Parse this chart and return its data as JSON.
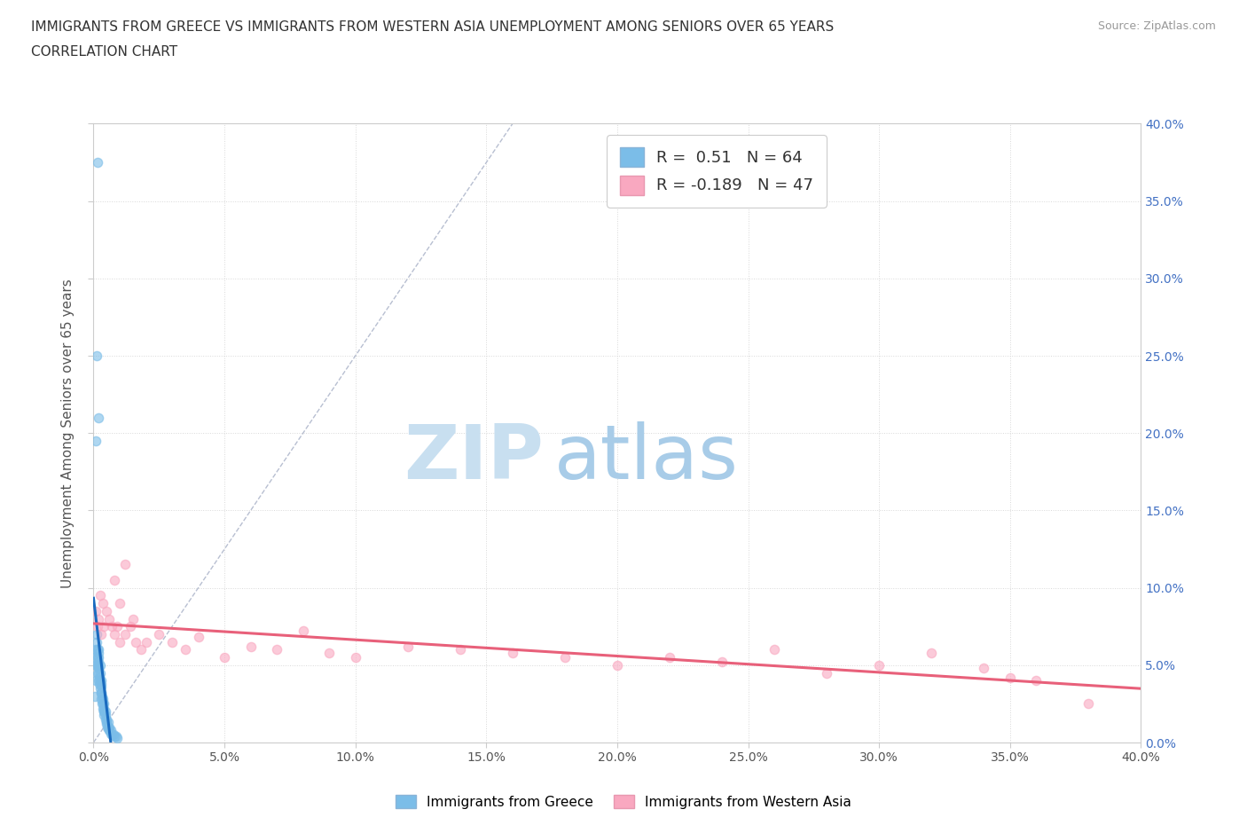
{
  "title_line1": "IMMIGRANTS FROM GREECE VS IMMIGRANTS FROM WESTERN ASIA UNEMPLOYMENT AMONG SENIORS OVER 65 YEARS",
  "title_line2": "CORRELATION CHART",
  "source_text": "Source: ZipAtlas.com",
  "ylabel": "Unemployment Among Seniors over 65 years",
  "xlim": [
    0.0,
    0.4
  ],
  "ylim": [
    0.0,
    0.4
  ],
  "xticks": [
    0.0,
    0.05,
    0.1,
    0.15,
    0.2,
    0.25,
    0.3,
    0.35,
    0.4
  ],
  "yticks": [
    0.0,
    0.05,
    0.1,
    0.15,
    0.2,
    0.25,
    0.3,
    0.35,
    0.4
  ],
  "R_greece": 0.51,
  "N_greece": 64,
  "R_western_asia": -0.189,
  "N_western_asia": 47,
  "color_greece": "#7bbde8",
  "color_western_asia": "#f9a8c0",
  "color_greece_line": "#1a6bbf",
  "color_western_asia_line": "#e8607a",
  "color_diag": "#b0b8cc",
  "watermark_zip": "ZIP",
  "watermark_atlas": "atlas",
  "watermark_color": "#c8dff0",
  "greece_x": [
    0.0005,
    0.0005,
    0.0008,
    0.001,
    0.001,
    0.0012,
    0.0012,
    0.0015,
    0.0015,
    0.0015,
    0.0015,
    0.0018,
    0.0018,
    0.0018,
    0.002,
    0.002,
    0.002,
    0.002,
    0.002,
    0.0022,
    0.0022,
    0.0025,
    0.0025,
    0.0025,
    0.0025,
    0.0028,
    0.0028,
    0.003,
    0.003,
    0.003,
    0.003,
    0.0032,
    0.0032,
    0.0035,
    0.0035,
    0.0035,
    0.0038,
    0.004,
    0.004,
    0.004,
    0.004,
    0.0045,
    0.0045,
    0.0045,
    0.0048,
    0.005,
    0.005,
    0.0052,
    0.0055,
    0.0055,
    0.0058,
    0.006,
    0.006,
    0.0065,
    0.0065,
    0.007,
    0.0075,
    0.008,
    0.0085,
    0.009,
    0.001,
    0.0012,
    0.0015,
    0.0018
  ],
  "greece_y": [
    0.055,
    0.03,
    0.04,
    0.05,
    0.06,
    0.065,
    0.07,
    0.045,
    0.05,
    0.055,
    0.06,
    0.048,
    0.052,
    0.058,
    0.04,
    0.045,
    0.05,
    0.055,
    0.06,
    0.038,
    0.042,
    0.035,
    0.04,
    0.045,
    0.05,
    0.032,
    0.038,
    0.028,
    0.032,
    0.036,
    0.04,
    0.025,
    0.03,
    0.022,
    0.025,
    0.028,
    0.02,
    0.018,
    0.02,
    0.022,
    0.025,
    0.015,
    0.018,
    0.02,
    0.013,
    0.012,
    0.015,
    0.01,
    0.01,
    0.013,
    0.008,
    0.008,
    0.01,
    0.006,
    0.008,
    0.005,
    0.005,
    0.004,
    0.004,
    0.003,
    0.195,
    0.25,
    0.375,
    0.21
  ],
  "western_asia_x": [
    0.001,
    0.0015,
    0.002,
    0.0025,
    0.003,
    0.0035,
    0.004,
    0.005,
    0.006,
    0.007,
    0.008,
    0.009,
    0.01,
    0.012,
    0.014,
    0.016,
    0.018,
    0.02,
    0.025,
    0.03,
    0.035,
    0.04,
    0.05,
    0.06,
    0.07,
    0.08,
    0.09,
    0.1,
    0.12,
    0.14,
    0.16,
    0.18,
    0.2,
    0.22,
    0.24,
    0.26,
    0.28,
    0.3,
    0.32,
    0.34,
    0.35,
    0.36,
    0.38,
    0.008,
    0.01,
    0.012,
    0.015
  ],
  "western_asia_y": [
    0.085,
    0.075,
    0.08,
    0.095,
    0.07,
    0.09,
    0.075,
    0.085,
    0.08,
    0.075,
    0.07,
    0.075,
    0.065,
    0.07,
    0.075,
    0.065,
    0.06,
    0.065,
    0.07,
    0.065,
    0.06,
    0.068,
    0.055,
    0.062,
    0.06,
    0.072,
    0.058,
    0.055,
    0.062,
    0.06,
    0.058,
    0.055,
    0.05,
    0.055,
    0.052,
    0.06,
    0.045,
    0.05,
    0.058,
    0.048,
    0.042,
    0.04,
    0.025,
    0.105,
    0.09,
    0.115,
    0.08
  ]
}
